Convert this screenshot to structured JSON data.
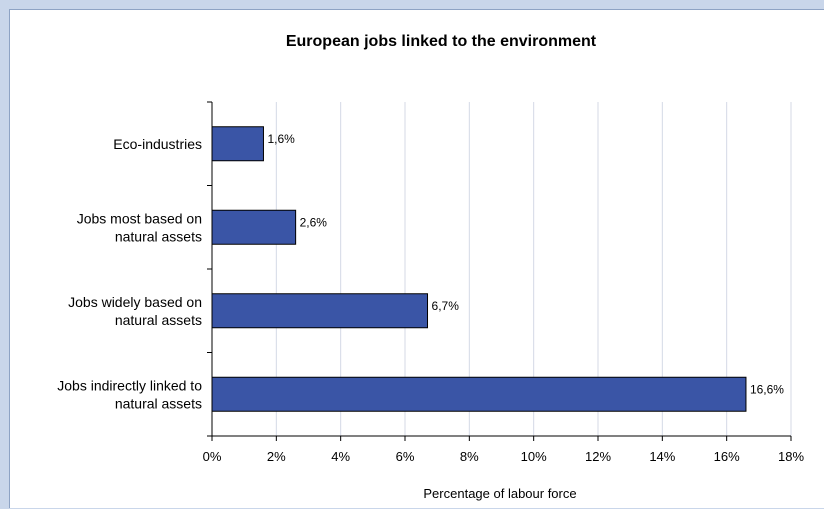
{
  "chart_data": {
    "type": "bar",
    "orientation": "horizontal",
    "title": "European jobs linked to the environment",
    "xlabel": "Percentage of labour force",
    "ylabel": "",
    "categories": [
      [
        "Eco-industries"
      ],
      [
        "Jobs most based on",
        "natural assets"
      ],
      [
        "Jobs widely based on",
        "natural assets"
      ],
      [
        "Jobs indirectly linked to",
        "natural assets"
      ]
    ],
    "values": [
      1.6,
      2.6,
      6.7,
      16.6
    ],
    "data_labels": [
      "1,6%",
      "2,6%",
      "6,7%",
      "16,6%"
    ],
    "xlim": [
      0,
      18
    ],
    "xticks": [
      0,
      2,
      4,
      6,
      8,
      10,
      12,
      14,
      16,
      18
    ],
    "xtick_labels": [
      "0%",
      "2%",
      "4%",
      "6%",
      "8%",
      "10%",
      "12%",
      "14%",
      "16%",
      "18%"
    ],
    "grid": "vertical",
    "legend": "none",
    "bar_color": "#3a55a6",
    "bar_edge_color": "#000000",
    "grid_color": "#d4d9e6",
    "background_color": "#c9d6ea"
  }
}
